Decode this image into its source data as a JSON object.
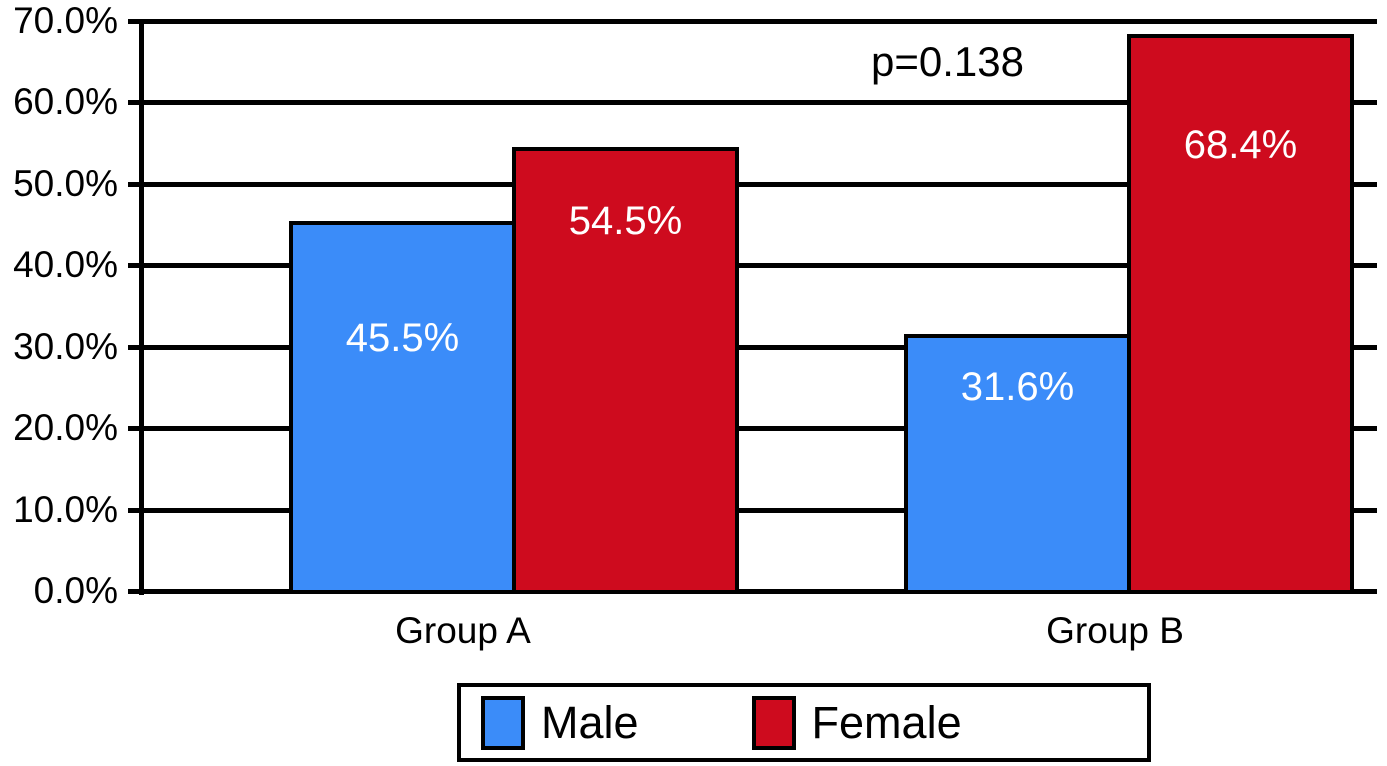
{
  "chart_data": {
    "type": "bar",
    "title": "",
    "categories": [
      "Group A",
      "Group B"
    ],
    "series": [
      {
        "name": "Male",
        "color": "#3b8cf9",
        "values": [
          45.5,
          31.6
        ],
        "labels": [
          "45.5%",
          "31.6%"
        ]
      },
      {
        "name": "Female",
        "color": "#ce0b1e",
        "values": [
          54.5,
          68.4
        ],
        "labels": [
          "54.5%",
          "68.4%"
        ]
      }
    ],
    "annotation": "p=0.138",
    "y_axis": {
      "min": 0,
      "max": 70,
      "tick_interval": 10,
      "tick_labels": [
        "0.0%",
        "10.0%",
        "20.0%",
        "30.0%",
        "40.0%",
        "50.0%",
        "60.0%",
        "70.0%"
      ]
    },
    "ylim": [
      0,
      70
    ],
    "grid": true,
    "legend": {
      "position": "bottom",
      "entries": [
        "Male",
        "Female"
      ]
    },
    "value_label_color": "#ffffff",
    "axis_color": "#000000",
    "background_color": "#ffffff"
  }
}
